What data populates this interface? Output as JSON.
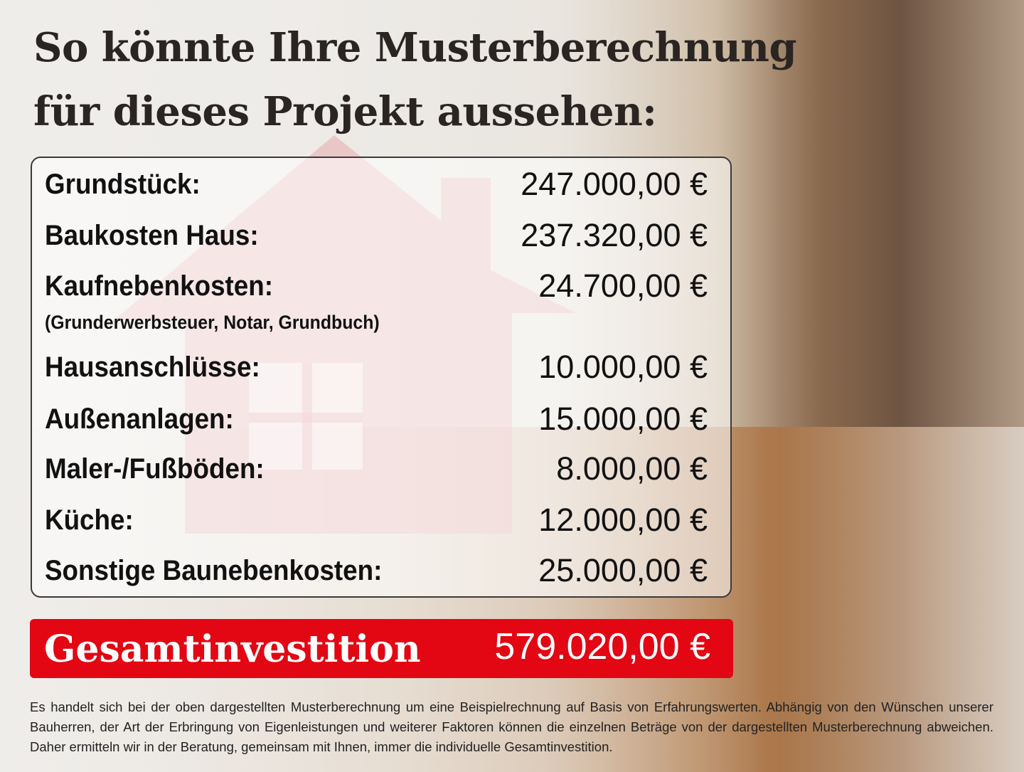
{
  "title": {
    "line1": "So könnte Ihre Musterberechnung",
    "line2": "für dieses Projekt aussehen:"
  },
  "rows": [
    {
      "label": "Grundstück:",
      "value": "247.000,00 €"
    },
    {
      "label": "Baukosten Haus:",
      "value": "237.320,00 €"
    },
    {
      "label": "Kaufnebenkosten:",
      "value": "24.700,00 €",
      "note": "(Grunderwerbsteuer, Notar, Grundbuch)"
    },
    {
      "label": "Hausanschlüsse:",
      "value": "10.000,00 €"
    },
    {
      "label": "Außenanlagen:",
      "value": "15.000,00 €"
    },
    {
      "label": "Maler-/Fußböden:",
      "value": "8.000,00 €"
    },
    {
      "label": "Küche:",
      "value": "12.000,00 €"
    },
    {
      "label": "Sonstige Baunebenkosten:",
      "value": "25.000,00 €"
    }
  ],
  "total": {
    "label": "Gesamtinvestition",
    "value": "579.020,00 €"
  },
  "disclaimer": "Es handelt sich bei der oben dargestellten Musterberechnung um eine Beispielrechnung auf Basis von Erfahrungswerten. Abhängig von den Wünschen unserer Bauherren, der Art der Erbringung von Eigenleistungen und weiterer Faktoren können die einzelnen Beträge von der dargestellten Musterberechnung abweichen. Daher ermitteln wir in der Beratung, gemeinsam mit Ihnen, immer die individuelle Gesamtinvestition.",
  "colors": {
    "accent": "#e30613",
    "title": "#2a2522"
  }
}
